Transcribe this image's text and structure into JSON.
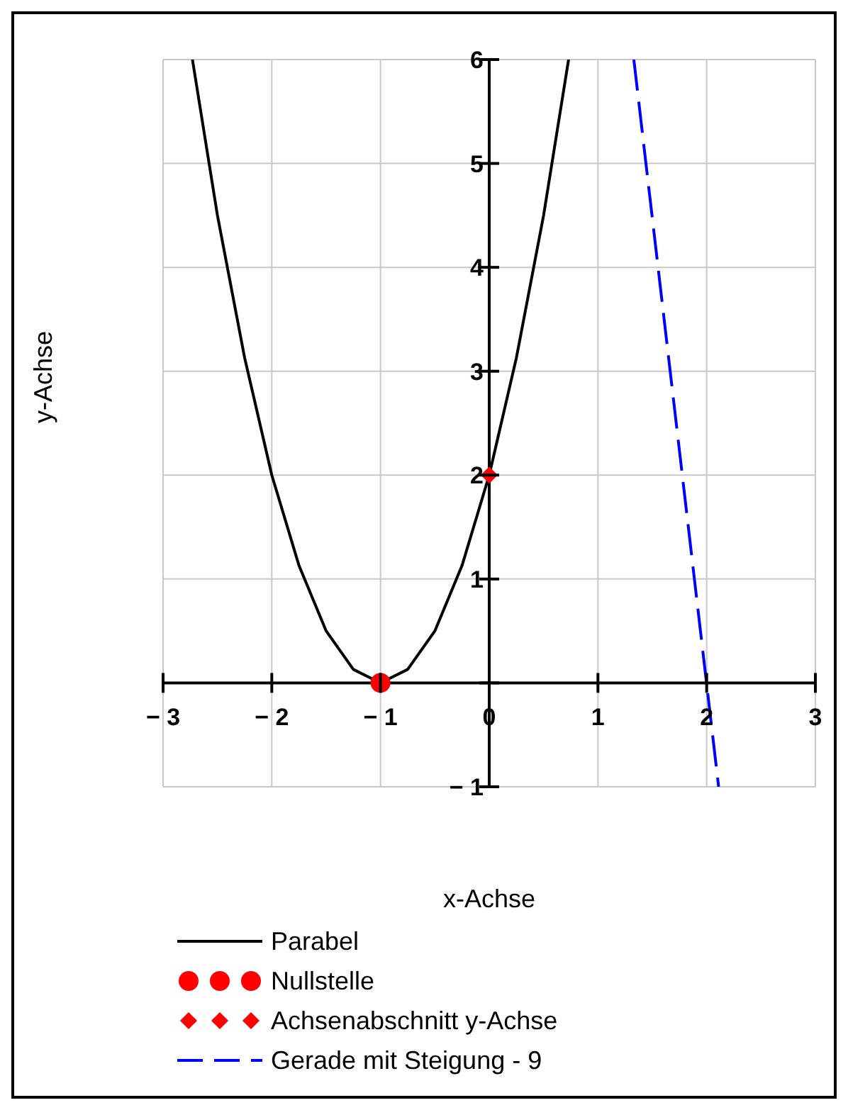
{
  "chart_data": {
    "type": "line",
    "xlabel": "x-Achse",
    "ylabel": "y-Achse",
    "xlim": [
      -3,
      3
    ],
    "ylim": [
      -1,
      6
    ],
    "xticks": [
      {
        "value": -3,
        "label": "− 3"
      },
      {
        "value": -2,
        "label": "− 2"
      },
      {
        "value": -1,
        "label": "− 1"
      },
      0,
      1,
      2,
      3
    ],
    "yticks": [
      {
        "value": -1,
        "label": "− 1"
      },
      {
        "value": 0,
        "label": null
      },
      1,
      2,
      3,
      4,
      5,
      6
    ],
    "grid": true,
    "legend": "bottom",
    "series": [
      {
        "name": "Parabel",
        "color": "#000000",
        "line_style": "solid",
        "marker": "none",
        "x": [
          -2.73,
          -2.5,
          -2.25,
          -2,
          -1.75,
          -1.5,
          -1.25,
          -1,
          -0.75,
          -0.5,
          -0.25,
          0,
          0.25,
          0.5,
          0.73
        ],
        "values": [
          6,
          4.5,
          3.13,
          2,
          1.13,
          0.5,
          0.13,
          0,
          0.13,
          0.5,
          1.13,
          2,
          3.13,
          4.5,
          6
        ]
      },
      {
        "name": "Nullstelle",
        "type": "scatter",
        "color": "#ff0000",
        "marker": "circle",
        "x": [
          -1
        ],
        "values": [
          0
        ]
      },
      {
        "name": "Achsenabschnitt y-Achse",
        "type": "scatter",
        "color": "#ff0000",
        "marker": "diamond",
        "x": [
          0
        ],
        "values": [
          2
        ]
      },
      {
        "name": "Gerade mit Steigung - 9",
        "color": "#0000ff",
        "line_style": "dashed",
        "marker": "none",
        "x": [
          1.33,
          2.11
        ],
        "values": [
          6,
          -1
        ]
      }
    ]
  }
}
